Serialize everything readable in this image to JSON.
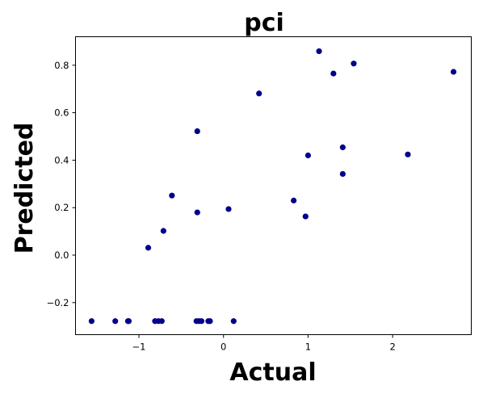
{
  "chart_data": {
    "type": "scatter",
    "title": "pci",
    "xlabel": "Actual",
    "ylabel": "Predicted",
    "xlim": [
      -1.75,
      2.93
    ],
    "ylim": [
      -0.335,
      0.92
    ],
    "xticks": [
      -1,
      0,
      1,
      2
    ],
    "xtick_labels": [
      "−1",
      "0",
      "1",
      "2"
    ],
    "yticks": [
      -0.2,
      0.0,
      0.2,
      0.4,
      0.6,
      0.8
    ],
    "ytick_labels": [
      "−0.2",
      "0.0",
      "0.2",
      "0.4",
      "0.6",
      "0.8"
    ],
    "grid": false,
    "marker_color": "#00008b",
    "points": [
      {
        "x": -1.56,
        "y": -0.278
      },
      {
        "x": -1.28,
        "y": -0.278
      },
      {
        "x": -1.13,
        "y": -0.278
      },
      {
        "x": -1.12,
        "y": -0.278
      },
      {
        "x": -0.81,
        "y": -0.278
      },
      {
        "x": -0.77,
        "y": -0.278
      },
      {
        "x": -0.73,
        "y": -0.278
      },
      {
        "x": -0.32,
        "y": -0.278
      },
      {
        "x": -0.29,
        "y": -0.278
      },
      {
        "x": -0.26,
        "y": -0.278
      },
      {
        "x": -0.18,
        "y": -0.278
      },
      {
        "x": -0.16,
        "y": -0.278
      },
      {
        "x": 0.12,
        "y": -0.278
      },
      {
        "x": -0.89,
        "y": 0.031
      },
      {
        "x": -0.71,
        "y": 0.102
      },
      {
        "x": -0.61,
        "y": 0.251
      },
      {
        "x": -0.31,
        "y": 0.18
      },
      {
        "x": -0.31,
        "y": 0.522
      },
      {
        "x": 0.06,
        "y": 0.194
      },
      {
        "x": 0.42,
        "y": 0.681
      },
      {
        "x": 0.83,
        "y": 0.23
      },
      {
        "x": 0.97,
        "y": 0.163
      },
      {
        "x": 1.0,
        "y": 0.42
      },
      {
        "x": 1.13,
        "y": 0.859
      },
      {
        "x": 1.3,
        "y": 0.765
      },
      {
        "x": 1.41,
        "y": 0.342
      },
      {
        "x": 1.41,
        "y": 0.454
      },
      {
        "x": 1.54,
        "y": 0.807
      },
      {
        "x": 2.18,
        "y": 0.424
      },
      {
        "x": 2.72,
        "y": 0.772
      }
    ]
  }
}
